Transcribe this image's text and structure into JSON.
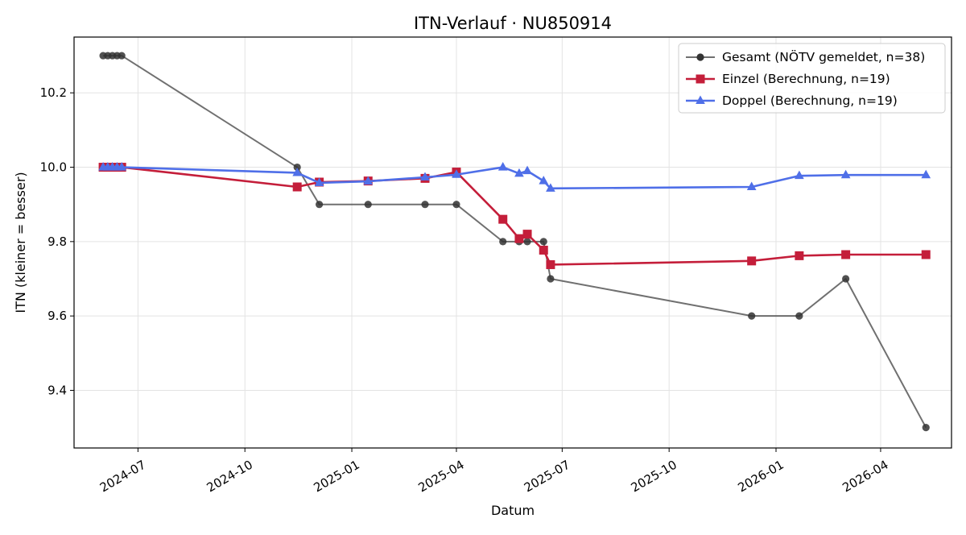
{
  "chart_data": {
    "type": "line",
    "title": "ITN-Verlauf · NU850914",
    "xlabel": "Datum",
    "ylabel": "ITN  (kleiner = besser)",
    "x_axis_type": "date",
    "xlim": [
      "2024-05-07",
      "2026-06-01"
    ],
    "ylim": [
      9.245,
      10.35
    ],
    "x_ticks": [
      "2024-07-01",
      "2024-10-01",
      "2025-01-01",
      "2025-04-01",
      "2025-07-01",
      "2025-10-01",
      "2026-01-01",
      "2026-04-01"
    ],
    "x_tick_labels": [
      "2024-07",
      "2024-10",
      "2025-01",
      "2025-04",
      "2025-07",
      "2025-10",
      "2026-01",
      "2026-04"
    ],
    "y_ticks": [
      9.4,
      9.6,
      9.8,
      10.0,
      10.2
    ],
    "y_tick_labels": [
      "9.4",
      "9.6",
      "9.8",
      "10.0",
      "10.2"
    ],
    "grid": true,
    "legend_position": "top-right",
    "series": [
      {
        "name": "Gesamt (NÖTV gemeldet, n=38)",
        "color": "#333333",
        "marker": "circle",
        "points": [
          {
            "x": "2024-06-01",
            "y": 10.3
          },
          {
            "x": "2024-06-05",
            "y": 10.3
          },
          {
            "x": "2024-06-09",
            "y": 10.3
          },
          {
            "x": "2024-06-13",
            "y": 10.3
          },
          {
            "x": "2024-06-17",
            "y": 10.3
          },
          {
            "x": "2024-11-15",
            "y": 10.0
          },
          {
            "x": "2024-12-04",
            "y": 9.9
          },
          {
            "x": "2025-01-15",
            "y": 9.9
          },
          {
            "x": "2025-03-05",
            "y": 9.9
          },
          {
            "x": "2025-04-01",
            "y": 9.9
          },
          {
            "x": "2025-05-11",
            "y": 9.8
          },
          {
            "x": "2025-05-25",
            "y": 9.8
          },
          {
            "x": "2025-06-01",
            "y": 9.8
          },
          {
            "x": "2025-06-15",
            "y": 9.8
          },
          {
            "x": "2025-06-21",
            "y": 9.7
          },
          {
            "x": "2025-12-11",
            "y": 9.6
          },
          {
            "x": "2026-01-21",
            "y": 9.6
          },
          {
            "x": "2026-03-02",
            "y": 9.7
          },
          {
            "x": "2026-05-10",
            "y": 9.3
          }
        ]
      },
      {
        "name": "Einzel (Berechnung, n=19)",
        "color": "#c41e3a",
        "marker": "square",
        "points": [
          {
            "x": "2024-06-01",
            "y": 10.0
          },
          {
            "x": "2024-06-05",
            "y": 10.0
          },
          {
            "x": "2024-06-09",
            "y": 10.0
          },
          {
            "x": "2024-06-13",
            "y": 10.0
          },
          {
            "x": "2024-06-17",
            "y": 10.0
          },
          {
            "x": "2024-11-15",
            "y": 9.947
          },
          {
            "x": "2024-12-04",
            "y": 9.96
          },
          {
            "x": "2025-01-15",
            "y": 9.963
          },
          {
            "x": "2025-03-05",
            "y": 9.97
          },
          {
            "x": "2025-04-01",
            "y": 9.987
          },
          {
            "x": "2025-05-11",
            "y": 9.86
          },
          {
            "x": "2025-05-25",
            "y": 9.808
          },
          {
            "x": "2025-06-01",
            "y": 9.82
          },
          {
            "x": "2025-06-15",
            "y": 9.777
          },
          {
            "x": "2025-06-21",
            "y": 9.738
          },
          {
            "x": "2025-12-11",
            "y": 9.748
          },
          {
            "x": "2026-01-21",
            "y": 9.762
          },
          {
            "x": "2026-03-02",
            "y": 9.765
          },
          {
            "x": "2026-05-10",
            "y": 9.765
          }
        ]
      },
      {
        "name": "Doppel (Berechnung, n=19)",
        "color": "#4f6fe8",
        "marker": "triangle",
        "points": [
          {
            "x": "2024-06-01",
            "y": 10.0
          },
          {
            "x": "2024-06-05",
            "y": 10.0
          },
          {
            "x": "2024-06-09",
            "y": 10.0
          },
          {
            "x": "2024-06-13",
            "y": 10.0
          },
          {
            "x": "2024-06-17",
            "y": 10.0
          },
          {
            "x": "2024-11-15",
            "y": 9.985
          },
          {
            "x": "2024-12-04",
            "y": 9.958
          },
          {
            "x": "2025-01-15",
            "y": 9.962
          },
          {
            "x": "2025-03-05",
            "y": 9.973
          },
          {
            "x": "2025-04-01",
            "y": 9.98
          },
          {
            "x": "2025-05-11",
            "y": 10.0
          },
          {
            "x": "2025-05-25",
            "y": 9.983
          },
          {
            "x": "2025-06-01",
            "y": 9.99
          },
          {
            "x": "2025-06-15",
            "y": 9.963
          },
          {
            "x": "2025-06-21",
            "y": 9.943
          },
          {
            "x": "2025-12-11",
            "y": 9.947
          },
          {
            "x": "2026-01-21",
            "y": 9.977
          },
          {
            "x": "2026-03-02",
            "y": 9.979
          },
          {
            "x": "2026-05-10",
            "y": 9.979
          }
        ]
      }
    ]
  }
}
